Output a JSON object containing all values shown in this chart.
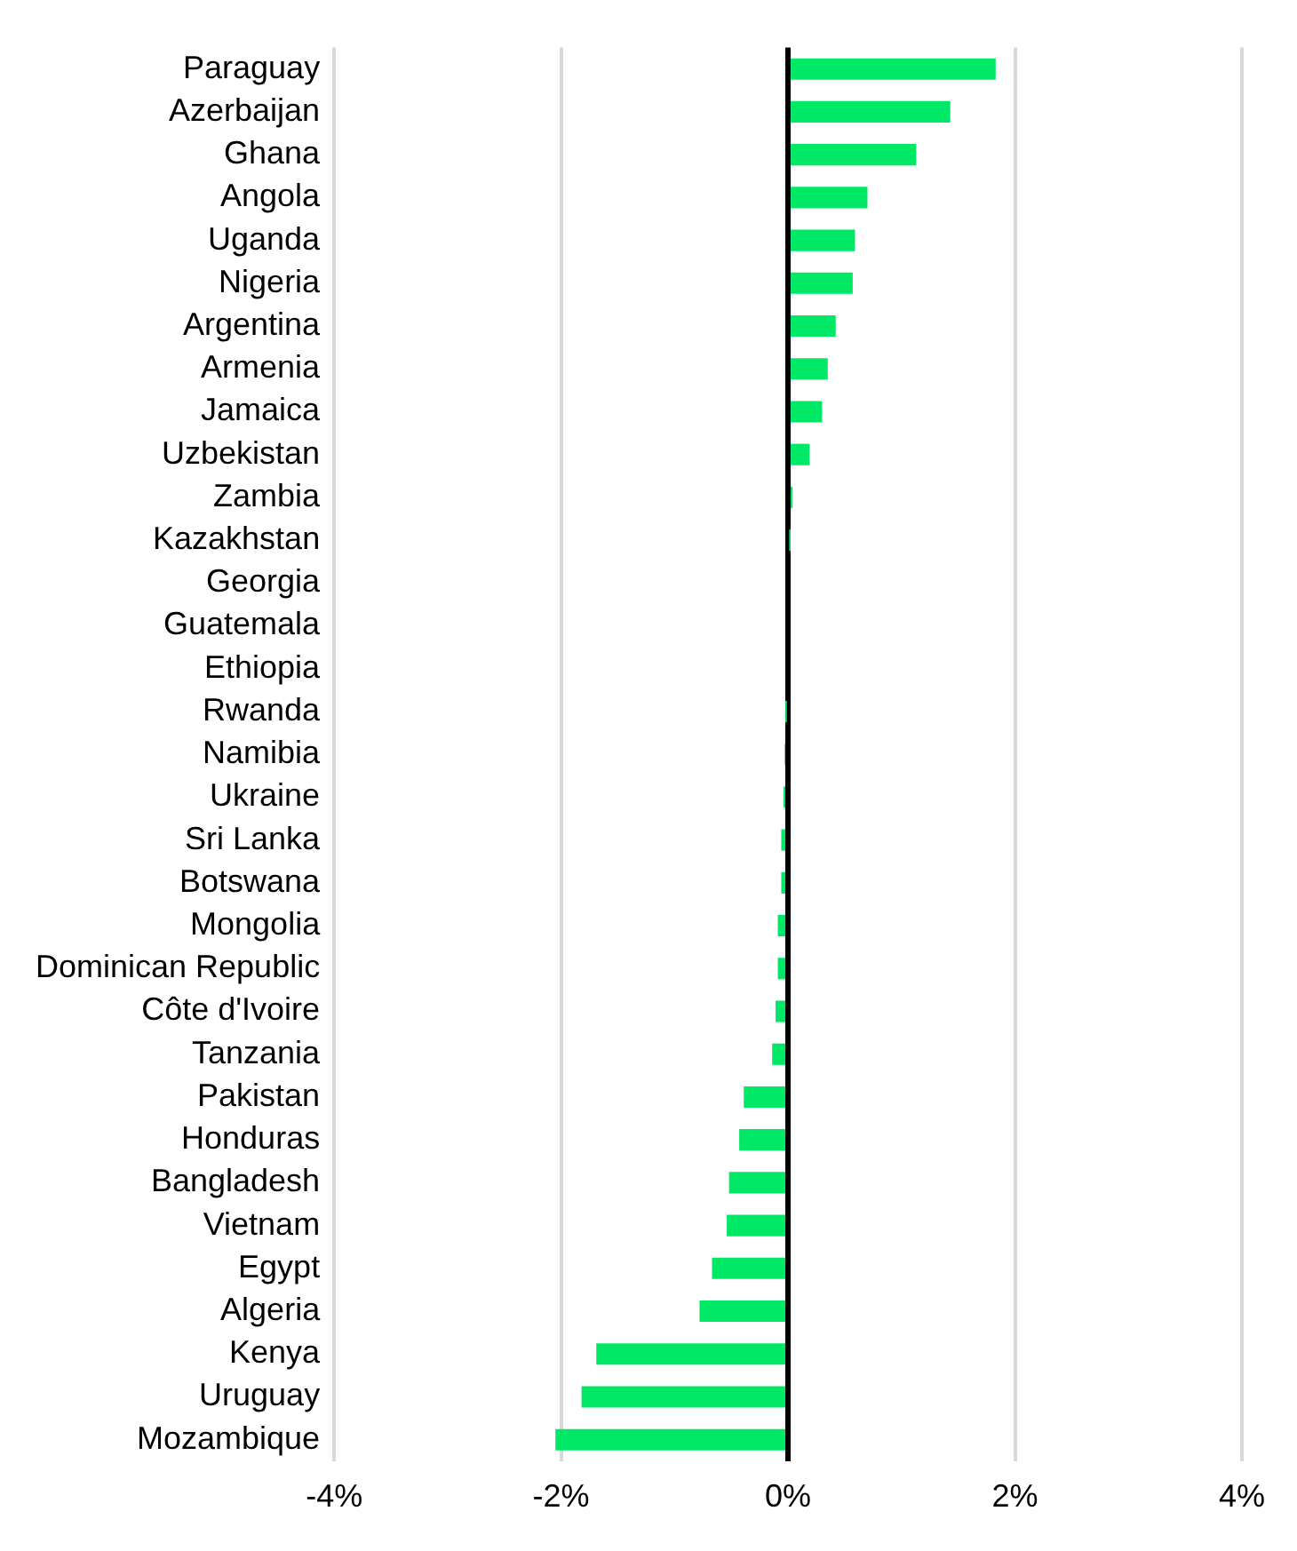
{
  "chart_data": {
    "type": "bar",
    "orientation": "horizontal",
    "categories": [
      "Paraguay",
      "Azerbaijan",
      "Ghana",
      "Angola",
      "Uganda",
      "Nigeria",
      "Argentina",
      "Armenia",
      "Jamaica",
      "Uzbekistan",
      "Zambia",
      "Kazakhstan",
      "Georgia",
      "Guatemala",
      "Ethiopia",
      "Rwanda",
      "Namibia",
      "Ukraine",
      "Sri Lanka",
      "Botswana",
      "Mongolia",
      "Dominican Republic",
      "Côte d'Ivoire",
      "Tanzania",
      "Pakistan",
      "Honduras",
      "Bangladesh",
      "Vietnam",
      "Egypt",
      "Algeria",
      "Kenya",
      "Uruguay",
      "Mozambique"
    ],
    "values": [
      1.83,
      1.43,
      1.13,
      0.7,
      0.59,
      0.57,
      0.42,
      0.35,
      0.3,
      0.19,
      0.04,
      0.01,
      0,
      0,
      0,
      -0.01,
      -0.03,
      -0.04,
      -0.06,
      -0.06,
      -0.09,
      -0.09,
      -0.11,
      -0.14,
      -0.39,
      -0.43,
      -0.52,
      -0.54,
      -0.67,
      -0.78,
      -1.69,
      -1.82,
      -2.05
    ],
    "color": "#00e865",
    "xlim": [
      -4,
      4
    ],
    "xticks": [
      {
        "value": -4,
        "label": "-4%"
      },
      {
        "value": -2,
        "label": "-2%"
      },
      {
        "value": 0,
        "label": "0%"
      },
      {
        "value": 2,
        "label": "2%"
      },
      {
        "value": 4,
        "label": "4%"
      }
    ],
    "grid": "x",
    "legend": false
  }
}
